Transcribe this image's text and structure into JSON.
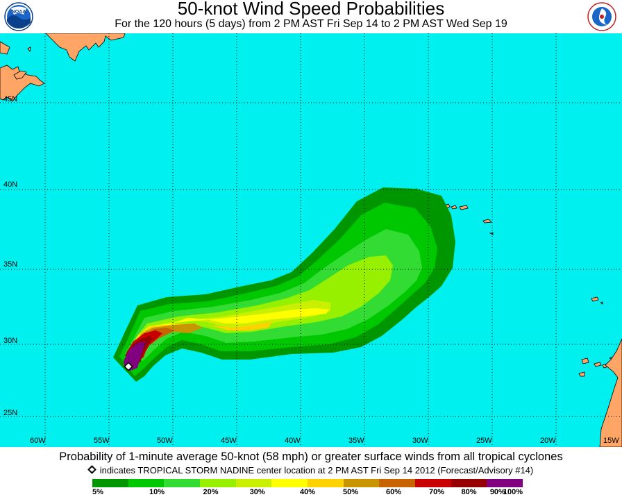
{
  "header": {
    "title": "50-knot Wind Speed Probabilities",
    "subtitle": "For the 120 hours (5 days) from 2 PM AST Fri Sep 14 to 2 PM AST Wed Sep 19"
  },
  "logos": {
    "left": "noaa-logo",
    "right": "nws-logo"
  },
  "map": {
    "ocean_color": "#00f0f0",
    "land_color": "#ffa566",
    "lat_labels": [
      "45N",
      "40N",
      "35N",
      "30N",
      "25N"
    ],
    "lon_labels": [
      "60W",
      "55W",
      "50W",
      "45W",
      "40W",
      "35W",
      "30W",
      "25W",
      "20W",
      "15W"
    ],
    "storm_marker": "diamond-icon"
  },
  "footer": {
    "description": "Probability of 1-minute average 50-knot (58 mph) or greater surface winds from all tropical cyclones",
    "legend_text": "indicates TROPICAL STORM NADINE center location at 2 PM AST Fri Sep 14 2012 (Forecast/Advisory #14)"
  },
  "colorbar": {
    "colors": [
      "#009600",
      "#00c800",
      "#32dc32",
      "#96f000",
      "#c8f000",
      "#ffff00",
      "#ffd200",
      "#c89600",
      "#c86400",
      "#c80000",
      "#960000",
      "#800080"
    ],
    "labels": [
      "5%",
      "10%",
      "20%",
      "30%",
      "40%",
      "50%",
      "60%",
      "70%",
      "80%",
      "90%",
      "100%"
    ]
  }
}
